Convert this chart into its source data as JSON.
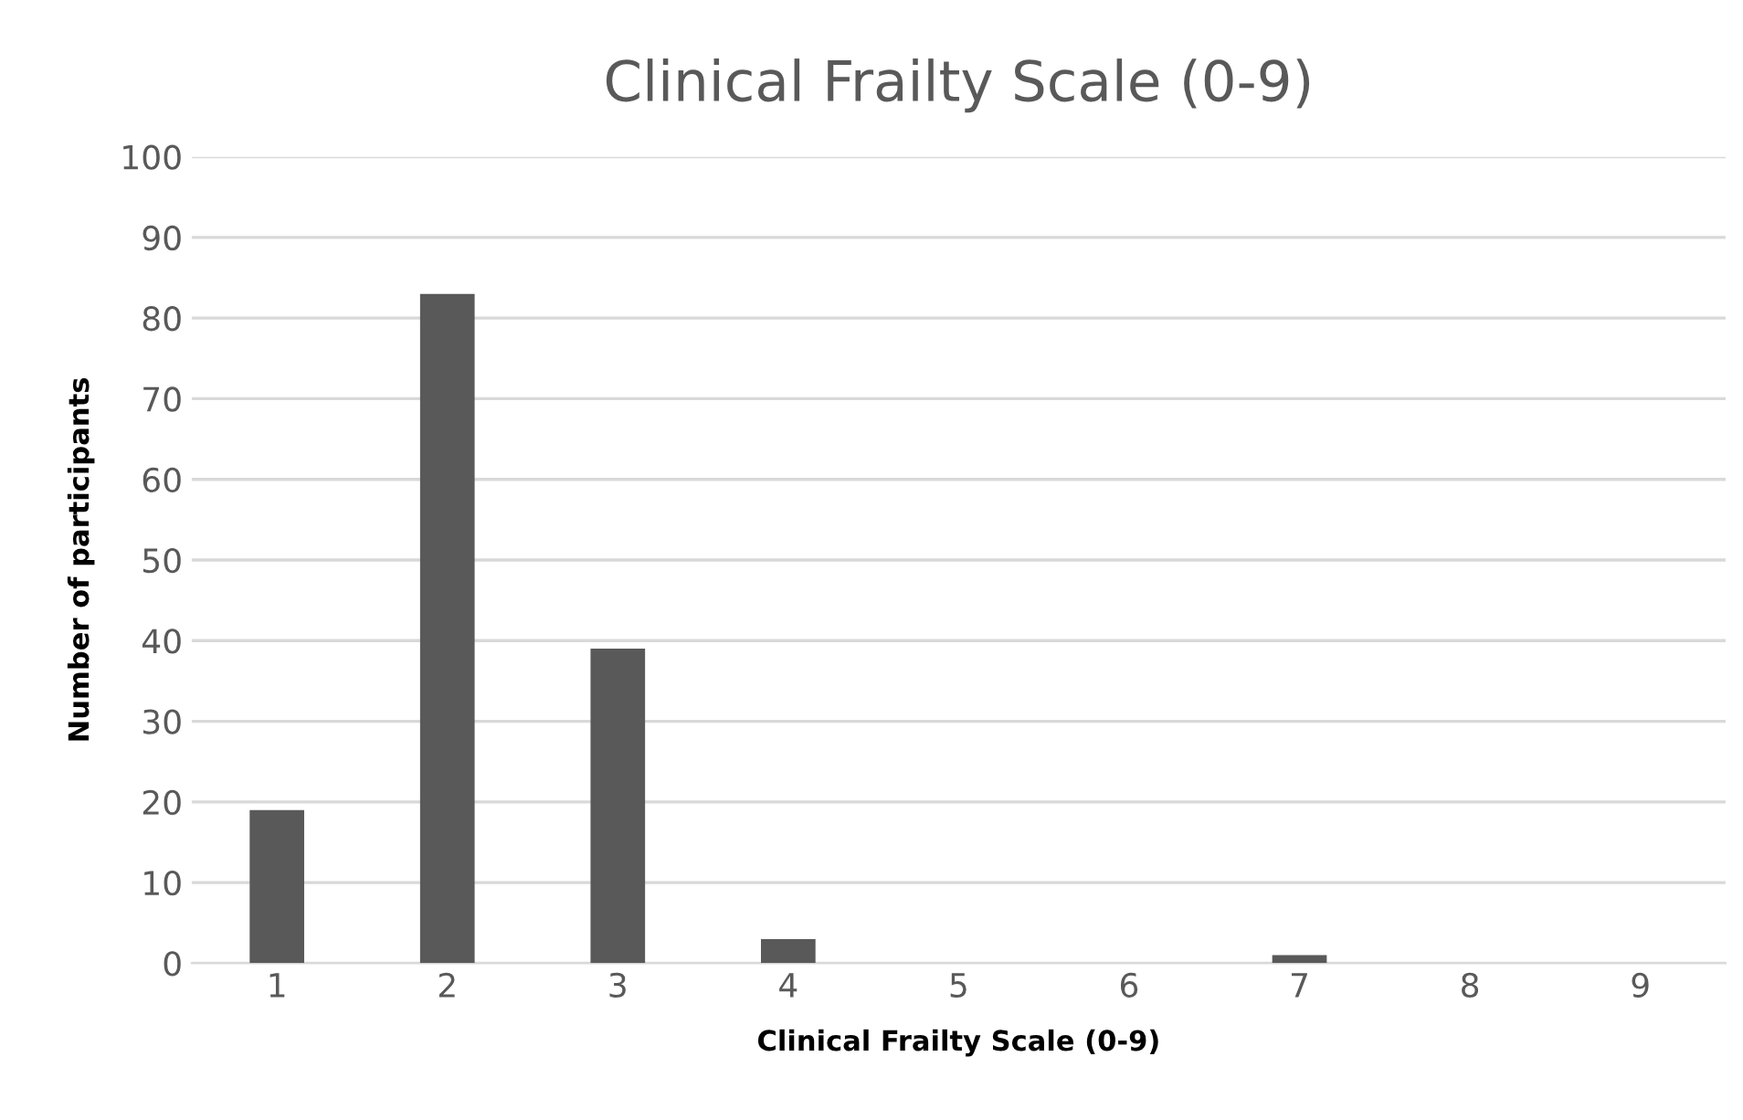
{
  "chart_data": {
    "type": "bar",
    "title": "Clinical Frailty Scale (0-9)",
    "xlabel": "Clinical Frailty Scale (0-9)",
    "ylabel": "Number of participants",
    "categories": [
      "1",
      "2",
      "3",
      "4",
      "5",
      "6",
      "7",
      "8",
      "9"
    ],
    "values": [
      19,
      83,
      39,
      3,
      0,
      0,
      1,
      0,
      0
    ],
    "color": "#595959",
    "ylim": [
      0,
      100
    ],
    "yticks": [
      0,
      10,
      20,
      30,
      40,
      50,
      60,
      70,
      80,
      90,
      100
    ],
    "grid": "y"
  }
}
